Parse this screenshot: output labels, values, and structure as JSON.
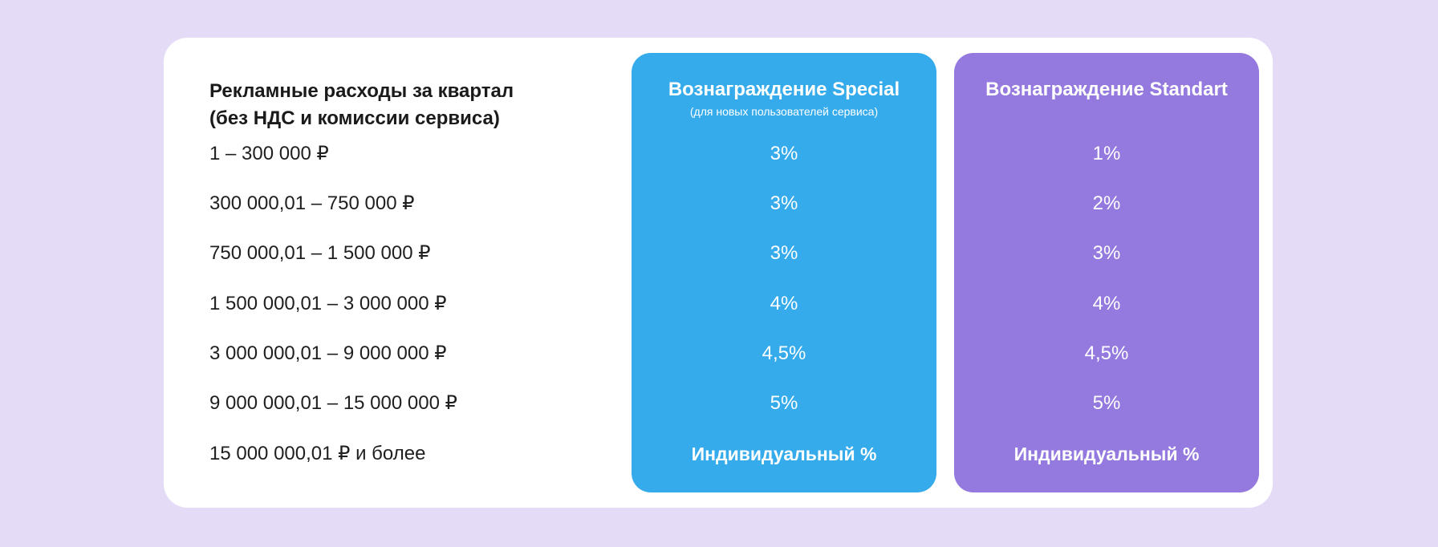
{
  "header": {
    "line1": "Рекламные расходы за квартал",
    "line2": "(без НДС и комиссии сервиса)"
  },
  "rows": [
    "1 – 300 000 ₽",
    "300 000,01 – 750 000 ₽",
    "750 000,01 – 1 500 000 ₽",
    "1 500 000,01 – 3 000 000 ₽",
    "3 000 000,01 – 9 000 000 ₽",
    "9 000 000,01 – 15 000 000 ₽",
    "15 000 000,01 ₽ и более"
  ],
  "special": {
    "title": "Вознаграждение Special",
    "subtitle": "(для новых пользователей сервиса)",
    "color": "#35abeb",
    "values": [
      "3%",
      "3%",
      "3%",
      "4%",
      "4,5%",
      "5%",
      "Индивидуальный %"
    ]
  },
  "standart": {
    "title": "Вознаграждение Standart",
    "color": "#9479de",
    "values": [
      "1%",
      "2%",
      "3%",
      "4%",
      "4,5%",
      "5%",
      "Индивидуальный %"
    ]
  }
}
